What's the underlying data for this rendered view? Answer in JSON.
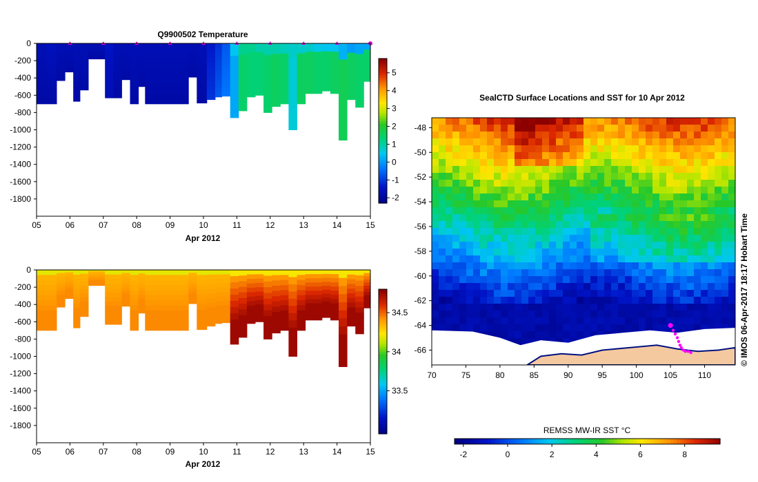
{
  "page": {
    "copyright_stamp": "© IMOS 06-Apr-2017 18:17 Hobart Time"
  },
  "chart_data": [
    {
      "type": "heatmap",
      "id": "temperature_section",
      "title": "Q9900502  Temperature",
      "xlabel": "Apr 2012",
      "ylabel": "",
      "x_ticks": [
        "05",
        "06",
        "07",
        "08",
        "09",
        "10",
        "11",
        "12",
        "13",
        "14",
        "15"
      ],
      "x_range": [
        5,
        15
      ],
      "ylim": [
        -2000,
        0
      ],
      "y_ticks": [
        0,
        -200,
        -400,
        -600,
        -800,
        -1000,
        -1200,
        -1400,
        -1600,
        -1800
      ],
      "colorbar": {
        "range": [
          -2.3,
          5.8
        ],
        "ticks": [
          5,
          4,
          3,
          2,
          1,
          0,
          -1,
          -2
        ]
      },
      "surface_markers_day": [
        6,
        7,
        8,
        9,
        10,
        11,
        12,
        13,
        14,
        15
      ],
      "profiles": [
        {
          "day": 5.0,
          "bottom": -700,
          "surface": -1.6,
          "deep": -1.8
        },
        {
          "day": 5.3,
          "bottom": -700,
          "surface": -1.5,
          "deep": -1.8
        },
        {
          "day": 5.6,
          "bottom": -430,
          "surface": -1.6,
          "deep": -1.8
        },
        {
          "day": 5.85,
          "bottom": -330,
          "surface": -1.6,
          "deep": -1.8
        },
        {
          "day": 6.1,
          "bottom": -670,
          "surface": -1.6,
          "deep": -1.8
        },
        {
          "day": 6.3,
          "bottom": -540,
          "surface": -1.6,
          "deep": -1.8
        },
        {
          "day": 6.55,
          "bottom": -180,
          "surface": -1.6,
          "deep": -1.8
        },
        {
          "day": 7.05,
          "bottom": -630,
          "surface": -1.4,
          "deep": -1.6
        },
        {
          "day": 7.3,
          "bottom": -630,
          "surface": -1.6,
          "deep": -1.8
        },
        {
          "day": 7.55,
          "bottom": -420,
          "surface": -1.6,
          "deep": -1.8
        },
        {
          "day": 7.8,
          "bottom": -700,
          "surface": -1.6,
          "deep": -1.8
        },
        {
          "day": 8.05,
          "bottom": -500,
          "surface": -1.6,
          "deep": -1.8
        },
        {
          "day": 8.25,
          "bottom": -700,
          "surface": -1.6,
          "deep": -1.8
        },
        {
          "day": 8.55,
          "bottom": -700,
          "surface": -1.6,
          "deep": -1.8
        },
        {
          "day": 8.8,
          "bottom": -700,
          "surface": -1.6,
          "deep": -1.8
        },
        {
          "day": 9.05,
          "bottom": -700,
          "surface": -1.6,
          "deep": -1.8
        },
        {
          "day": 9.3,
          "bottom": -700,
          "surface": -1.6,
          "deep": -1.8
        },
        {
          "day": 9.55,
          "bottom": -390,
          "surface": -1.6,
          "deep": -1.8
        },
        {
          "day": 9.8,
          "bottom": -690,
          "surface": -1.6,
          "deep": -1.8
        },
        {
          "day": 10.1,
          "bottom": -650,
          "surface": -1.3,
          "deep": -1.0
        },
        {
          "day": 10.35,
          "bottom": -620,
          "surface": -1.0,
          "deep": -0.6
        },
        {
          "day": 10.55,
          "bottom": -610,
          "surface": -0.6,
          "deep": -0.3
        },
        {
          "day": 10.8,
          "bottom": -860,
          "surface": 0.5,
          "deep": 0.2
        },
        {
          "day": 11.05,
          "bottom": -780,
          "surface": 1.2,
          "deep": 1.5
        },
        {
          "day": 11.3,
          "bottom": -620,
          "surface": 1.2,
          "deep": 1.4
        },
        {
          "day": 11.55,
          "bottom": -600,
          "surface": 1.0,
          "deep": 1.4
        },
        {
          "day": 11.8,
          "bottom": -800,
          "surface": 1.0,
          "deep": 1.5
        },
        {
          "day": 12.05,
          "bottom": -730,
          "surface": 1.0,
          "deep": 1.6
        },
        {
          "day": 12.3,
          "bottom": -700,
          "surface": 0.9,
          "deep": 1.5
        },
        {
          "day": 12.55,
          "bottom": -1000,
          "surface": 0.8,
          "deep": 0.7
        },
        {
          "day": 12.8,
          "bottom": -700,
          "surface": 0.8,
          "deep": 1.6
        },
        {
          "day": 13.05,
          "bottom": -580,
          "surface": 0.8,
          "deep": 1.6
        },
        {
          "day": 13.3,
          "bottom": -580,
          "surface": 0.6,
          "deep": 1.5
        },
        {
          "day": 13.55,
          "bottom": -550,
          "surface": 0.5,
          "deep": 1.5
        },
        {
          "day": 13.8,
          "bottom": -580,
          "surface": 0.5,
          "deep": 1.6
        },
        {
          "day": 14.05,
          "bottom": -1120,
          "surface": 0.3,
          "deep": 1.7
        },
        {
          "day": 14.3,
          "bottom": -650,
          "surface": 0.1,
          "deep": 1.6
        },
        {
          "day": 14.55,
          "bottom": -740,
          "surface": 0.2,
          "deep": 1.5
        },
        {
          "day": 14.8,
          "bottom": -440,
          "surface": 0.2,
          "deep": 1.5
        }
      ]
    },
    {
      "type": "heatmap",
      "id": "salinity_section",
      "title": "",
      "xlabel": "Apr 2012",
      "ylabel": "",
      "x_ticks": [
        "05",
        "06",
        "07",
        "08",
        "09",
        "10",
        "11",
        "12",
        "13",
        "14",
        "15"
      ],
      "x_range": [
        5,
        15
      ],
      "ylim": [
        -2000,
        0
      ],
      "y_ticks": [
        0,
        -200,
        -400,
        -600,
        -800,
        -1000,
        -1200,
        -1400,
        -1600,
        -1800
      ],
      "colorbar": {
        "range": [
          32.95,
          34.8
        ],
        "ticks": [
          34.5,
          34,
          33.5
        ],
        "tick_labels": [
          "34.5",
          "34",
          "33.5"
        ]
      },
      "profiles_same_depths_as": "temperature_section",
      "surface_value_warm": 34.35,
      "deep_value_warm": 34.45,
      "surface_value_cold": 34.38,
      "deep_value_cold": 34.76
    },
    {
      "type": "heatmap",
      "id": "sst_map",
      "title": "SealCTD Surface Locations and SST for 10 Apr 2012",
      "xlabel": "",
      "ylabel": "",
      "x_ticks": [
        70,
        75,
        80,
        85,
        90,
        95,
        100,
        105,
        110
      ],
      "y_ticks": [
        -48,
        -50,
        -52,
        -54,
        -56,
        -58,
        -60,
        -62,
        -64,
        -66
      ],
      "x_range": [
        70,
        114.5
      ],
      "y_range": [
        -67.2,
        -47.2
      ],
      "colorbar_label": "REMSS MW-IR SST °C",
      "colorbar": {
        "range": [
          -2.4,
          9.6
        ],
        "ticks": [
          -2,
          0,
          2,
          4,
          6,
          8
        ]
      },
      "track_points": [
        [
          105.0,
          -64.0
        ],
        [
          105.4,
          -64.4
        ],
        [
          105.7,
          -64.7
        ],
        [
          106.0,
          -65.0
        ],
        [
          106.2,
          -65.3
        ],
        [
          106.4,
          -65.6
        ],
        [
          106.6,
          -65.8
        ],
        [
          106.9,
          -66.0
        ],
        [
          107.2,
          -66.1
        ],
        [
          107.6,
          -66.1
        ],
        [
          108.0,
          -66.2
        ]
      ]
    }
  ]
}
